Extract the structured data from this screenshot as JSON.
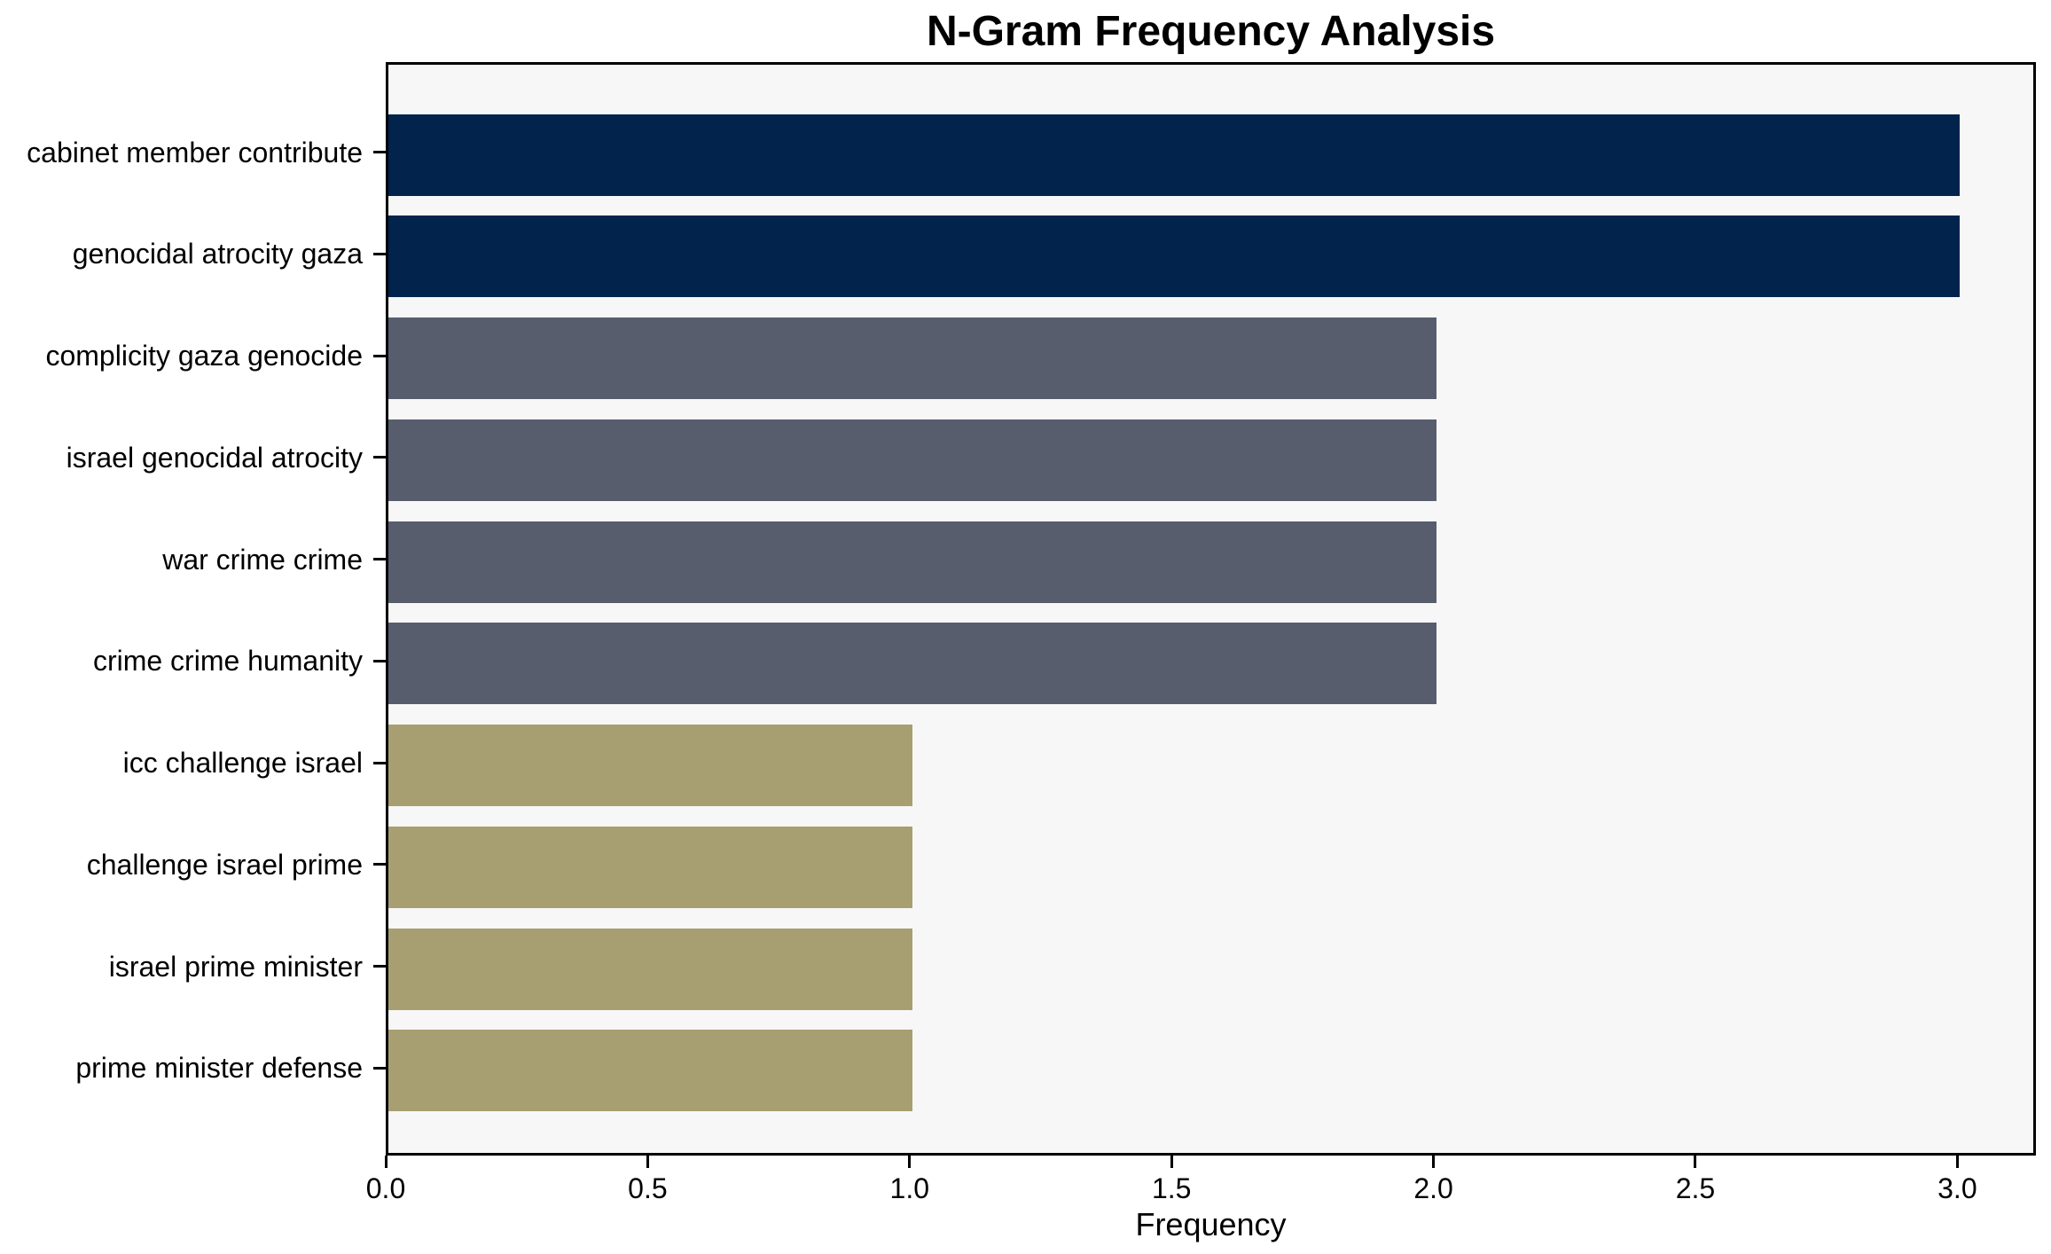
{
  "chart_data": {
    "type": "bar",
    "orientation": "horizontal",
    "title": "N-Gram Frequency Analysis",
    "xlabel": "Frequency",
    "ylabel": "",
    "categories": [
      "cabinet member contribute",
      "genocidal atrocity gaza",
      "complicity gaza genocide",
      "israel genocidal atrocity",
      "war crime crime",
      "crime crime humanity",
      "icc challenge israel",
      "challenge israel prime",
      "israel prime minister",
      "prime minister defense"
    ],
    "values": [
      3,
      3,
      2,
      2,
      2,
      2,
      1,
      1,
      1,
      1
    ],
    "bar_colors": [
      "#02234c",
      "#02234c",
      "#575d6d",
      "#575d6d",
      "#575d6d",
      "#575d6d",
      "#a79e71",
      "#a79e71",
      "#a79e71",
      "#a79e71"
    ],
    "xlim": [
      0,
      3.15
    ],
    "xticks": [
      0,
      0.5,
      1,
      1.5,
      2,
      2.5,
      3
    ],
    "xtick_labels": [
      "0.0",
      "0.5",
      "1.0",
      "1.5",
      "2.0",
      "2.5",
      "3.0"
    ],
    "grid": false,
    "legend_position": "none",
    "colors": {
      "value_3_bar": "#02234c",
      "value_2_bar": "#575d6d",
      "value_1_bar": "#a79e71",
      "plot_background": "#f7f7f7",
      "figure_background": "#ffffff",
      "spine": "#000000",
      "text": "#000000"
    }
  }
}
